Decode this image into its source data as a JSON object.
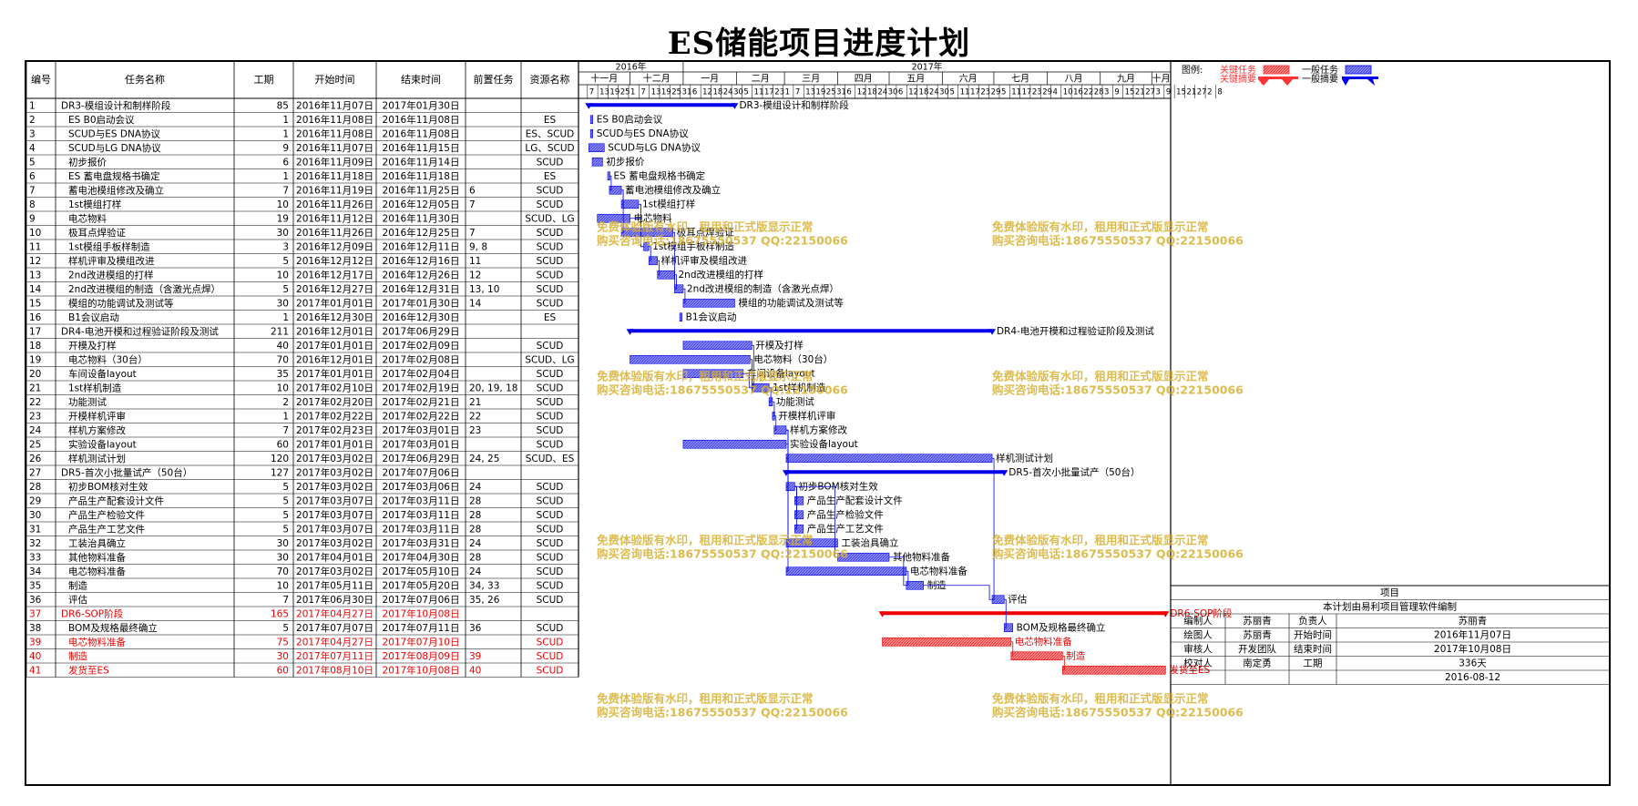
{
  "title": "ES储能项目进度计划",
  "table_headers": [
    "编号",
    "任务名称",
    "工期",
    "开始时间",
    "结束时间",
    "前置任务",
    "资源名称"
  ],
  "timeline": {
    "years": [
      {
        "label": "2016年",
        "start": "2016-11-01"
      },
      {
        "label": "2017年",
        "start": "2017-01-01"
      }
    ],
    "months": [
      "十一月",
      "十二月",
      "一月",
      "二月",
      "三月",
      "四月",
      "五月",
      "六月",
      "七月",
      "八月",
      "九月",
      "十月"
    ],
    "day_ticks": [
      "7",
      "13",
      "19",
      "25",
      "1",
      "7",
      "13",
      "19",
      "25",
      "31",
      "6",
      "12",
      "18",
      "24",
      "30",
      "5",
      "11",
      "17",
      "23",
      "1",
      "7",
      "13",
      "19",
      "25",
      "31",
      "6",
      "12",
      "18",
      "24",
      "30",
      "6",
      "12",
      "18",
      "24",
      "30",
      "5",
      "11",
      "17",
      "23",
      "29",
      "5",
      "11",
      "17",
      "23",
      "29",
      "4",
      "10",
      "16",
      "22",
      "28",
      "3",
      "9",
      "15",
      "21",
      "27",
      "3",
      "9",
      "15",
      "21",
      "27",
      "2",
      "8"
    ]
  },
  "legend": {
    "label": "图例:",
    "critical_task": "关键任务",
    "critical_summary": "关键摘要",
    "normal_task": "一般任务",
    "normal_summary": "一般摘要",
    "critical_color": "#ff3333",
    "normal_color": "#0000ee"
  },
  "watermark": {
    "line1": "免费体验版有水印，租用和正式版显示正常",
    "line2": "购买咨询电话:18675550537 QQ:22150066"
  },
  "info_box": {
    "header": "项目",
    "note": "本计划由易利项目管理软件编制",
    "rows": [
      [
        "编制人",
        "苏丽青",
        "负责人",
        "苏丽青"
      ],
      [
        "绘图人",
        "苏丽青",
        "开始时间",
        "2016年11月07日"
      ],
      [
        "审核人",
        "开发团队",
        "结束时间",
        "2017年10月08日"
      ],
      [
        "校对人",
        "南定勇",
        "工期",
        "336天"
      ]
    ],
    "date": "2016-08-12"
  },
  "chart_data": {
    "type": "gantt",
    "title": "ES储能项目进度计划",
    "x_range": [
      "2016-11-01",
      "2017-10-12"
    ],
    "tasks": [
      {
        "id": "1",
        "name": "DR3-模组设计和制样阶段",
        "duration": "85",
        "start": "2016年11月07日",
        "end": "2017年01月30日",
        "pred": "",
        "res": "",
        "kind": "summary",
        "critical": false,
        "start_date": "2016-11-07",
        "end_date": "2017-01-30"
      },
      {
        "id": "2",
        "name": "ES B0启动会议",
        "duration": "1",
        "start": "2016年11月08日",
        "end": "2016年11月08日",
        "pred": "",
        "res": "ES",
        "kind": "task",
        "critical": false,
        "start_date": "2016-11-08",
        "end_date": "2016-11-08"
      },
      {
        "id": "3",
        "name": "SCUD与ES DNA协议",
        "duration": "1",
        "start": "2016年11月08日",
        "end": "2016年11月08日",
        "pred": "",
        "res": "ES、SCUD",
        "kind": "task",
        "critical": false,
        "start_date": "2016-11-08",
        "end_date": "2016-11-08"
      },
      {
        "id": "4",
        "name": "SCUD与LG DNA协议",
        "duration": "9",
        "start": "2016年11月07日",
        "end": "2016年11月15日",
        "pred": "",
        "res": "LG、SCUD",
        "kind": "task",
        "critical": false,
        "start_date": "2016-11-07",
        "end_date": "2016-11-15"
      },
      {
        "id": "5",
        "name": "初步报价",
        "duration": "6",
        "start": "2016年11月09日",
        "end": "2016年11月14日",
        "pred": "",
        "res": "SCUD",
        "kind": "task",
        "critical": false,
        "start_date": "2016-11-09",
        "end_date": "2016-11-14"
      },
      {
        "id": "6",
        "name": "ES 蓄电盘规格书确定",
        "duration": "1",
        "start": "2016年11月18日",
        "end": "2016年11月18日",
        "pred": "",
        "res": "ES",
        "kind": "task",
        "critical": false,
        "start_date": "2016-11-18",
        "end_date": "2016-11-18"
      },
      {
        "id": "7",
        "name": "蓄电池模组修改及确立",
        "duration": "7",
        "start": "2016年11月19日",
        "end": "2016年11月25日",
        "pred": "6",
        "res": "SCUD",
        "kind": "task",
        "critical": false,
        "start_date": "2016-11-19",
        "end_date": "2016-11-25"
      },
      {
        "id": "8",
        "name": "1st模组打样",
        "duration": "10",
        "start": "2016年11月26日",
        "end": "2016年12月05日",
        "pred": "7",
        "res": "SCUD",
        "kind": "task",
        "critical": false,
        "start_date": "2016-11-26",
        "end_date": "2016-12-05"
      },
      {
        "id": "9",
        "name": "电芯物料",
        "duration": "19",
        "start": "2016年11月12日",
        "end": "2016年11月30日",
        "pred": "",
        "res": "SCUD、LG",
        "kind": "task",
        "critical": false,
        "start_date": "2016-11-12",
        "end_date": "2016-11-30"
      },
      {
        "id": "10",
        "name": "极耳点焊验证",
        "duration": "30",
        "start": "2016年11月26日",
        "end": "2016年12月25日",
        "pred": "7",
        "res": "SCUD",
        "kind": "task",
        "critical": false,
        "start_date": "2016-11-26",
        "end_date": "2016-12-25"
      },
      {
        "id": "11",
        "name": "1st模组手板样制造",
        "duration": "3",
        "start": "2016年12月09日",
        "end": "2016年12月11日",
        "pred": "9, 8",
        "res": "SCUD",
        "kind": "task",
        "critical": false,
        "start_date": "2016-12-09",
        "end_date": "2016-12-11"
      },
      {
        "id": "12",
        "name": "样机评审及模组改进",
        "duration": "5",
        "start": "2016年12月12日",
        "end": "2016年12月16日",
        "pred": "11",
        "res": "SCUD",
        "kind": "task",
        "critical": false,
        "start_date": "2016-12-12",
        "end_date": "2016-12-16"
      },
      {
        "id": "13",
        "name": "2nd改进模组的打样",
        "duration": "10",
        "start": "2016年12月17日",
        "end": "2016年12月26日",
        "pred": "12",
        "res": "SCUD",
        "kind": "task",
        "critical": false,
        "start_date": "2016-12-17",
        "end_date": "2016-12-26"
      },
      {
        "id": "14",
        "name": "2nd改进模组的制造（含激光点焊）",
        "duration": "5",
        "start": "2016年12月27日",
        "end": "2016年12月31日",
        "pred": "13, 10",
        "res": "SCUD",
        "kind": "task",
        "critical": false,
        "start_date": "2016-12-27",
        "end_date": "2016-12-31"
      },
      {
        "id": "15",
        "name": "模组的功能调试及测试等",
        "duration": "30",
        "start": "2017年01月01日",
        "end": "2017年01月30日",
        "pred": "14",
        "res": "SCUD",
        "kind": "task",
        "critical": false,
        "start_date": "2017-01-01",
        "end_date": "2017-01-30"
      },
      {
        "id": "16",
        "name": "B1会议启动",
        "duration": "1",
        "start": "2016年12月30日",
        "end": "2016年12月30日",
        "pred": "",
        "res": "ES",
        "kind": "task",
        "critical": false,
        "start_date": "2016-12-30",
        "end_date": "2016-12-30"
      },
      {
        "id": "17",
        "name": "DR4-电池开模和过程验证阶段及测试",
        "duration": "211",
        "start": "2016年12月01日",
        "end": "2017年06月29日",
        "pred": "",
        "res": "",
        "kind": "summary",
        "critical": false,
        "start_date": "2016-12-01",
        "end_date": "2017-06-29"
      },
      {
        "id": "18",
        "name": "开模及打样",
        "duration": "40",
        "start": "2017年01月01日",
        "end": "2017年02月09日",
        "pred": "",
        "res": "SCUD",
        "kind": "task",
        "critical": false,
        "start_date": "2017-01-01",
        "end_date": "2017-02-09"
      },
      {
        "id": "19",
        "name": "电芯物料（30台）",
        "duration": "70",
        "start": "2016年12月01日",
        "end": "2017年02月08日",
        "pred": "",
        "res": "SCUD、LG",
        "kind": "task",
        "critical": false,
        "start_date": "2016-12-01",
        "end_date": "2017-02-08"
      },
      {
        "id": "20",
        "name": "车间设备layout",
        "duration": "35",
        "start": "2017年01月01日",
        "end": "2017年02月04日",
        "pred": "",
        "res": "SCUD",
        "kind": "task",
        "critical": false,
        "start_date": "2017-01-01",
        "end_date": "2017-02-04"
      },
      {
        "id": "21",
        "name": "1st样机制造",
        "duration": "10",
        "start": "2017年02月10日",
        "end": "2017年02月19日",
        "pred": "20, 19, 18",
        "res": "SCUD",
        "kind": "task",
        "critical": false,
        "start_date": "2017-02-10",
        "end_date": "2017-02-19"
      },
      {
        "id": "22",
        "name": "功能测试",
        "duration": "2",
        "start": "2017年02月20日",
        "end": "2017年02月21日",
        "pred": "21",
        "res": "SCUD",
        "kind": "task",
        "critical": false,
        "start_date": "2017-02-20",
        "end_date": "2017-02-21"
      },
      {
        "id": "23",
        "name": "开模样机评审",
        "duration": "1",
        "start": "2017年02月22日",
        "end": "2017年02月22日",
        "pred": "22",
        "res": "SCUD",
        "kind": "task",
        "critical": false,
        "start_date": "2017-02-22",
        "end_date": "2017-02-22"
      },
      {
        "id": "24",
        "name": "样机方案修改",
        "duration": "7",
        "start": "2017年02月23日",
        "end": "2017年03月01日",
        "pred": "23",
        "res": "SCUD",
        "kind": "task",
        "critical": false,
        "start_date": "2017-02-23",
        "end_date": "2017-03-01"
      },
      {
        "id": "25",
        "name": "实验设备layout",
        "duration": "60",
        "start": "2017年01月01日",
        "end": "2017年03月01日",
        "pred": "",
        "res": "SCUD",
        "kind": "task",
        "critical": false,
        "start_date": "2017-01-01",
        "end_date": "2017-03-01"
      },
      {
        "id": "26",
        "name": "样机测试计划",
        "duration": "120",
        "start": "2017年03月02日",
        "end": "2017年06月29日",
        "pred": "24, 25",
        "res": "SCUD、ES",
        "kind": "task",
        "critical": false,
        "start_date": "2017-03-02",
        "end_date": "2017-06-29"
      },
      {
        "id": "27",
        "name": "DR5-首次小批量试产（50台）",
        "duration": "127",
        "start": "2017年03月02日",
        "end": "2017年07月06日",
        "pred": "",
        "res": "",
        "kind": "summary",
        "critical": false,
        "start_date": "2017-03-02",
        "end_date": "2017-07-06"
      },
      {
        "id": "28",
        "name": "初步BOM核对生效",
        "duration": "5",
        "start": "2017年03月02日",
        "end": "2017年03月06日",
        "pred": "24",
        "res": "SCUD",
        "kind": "task",
        "critical": false,
        "start_date": "2017-03-02",
        "end_date": "2017-03-06"
      },
      {
        "id": "29",
        "name": "产品生产配套设计文件",
        "duration": "5",
        "start": "2017年03月07日",
        "end": "2017年03月11日",
        "pred": "28",
        "res": "SCUD",
        "kind": "task",
        "critical": false,
        "start_date": "2017-03-07",
        "end_date": "2017-03-11"
      },
      {
        "id": "30",
        "name": "产品生产检验文件",
        "duration": "5",
        "start": "2017年03月07日",
        "end": "2017年03月11日",
        "pred": "28",
        "res": "SCUD",
        "kind": "task",
        "critical": false,
        "start_date": "2017-03-07",
        "end_date": "2017-03-11"
      },
      {
        "id": "31",
        "name": "产品生产工艺文件",
        "duration": "5",
        "start": "2017年03月07日",
        "end": "2017年03月11日",
        "pred": "28",
        "res": "SCUD",
        "kind": "task",
        "critical": false,
        "start_date": "2017-03-07",
        "end_date": "2017-03-11"
      },
      {
        "id": "32",
        "name": "工装治具确立",
        "duration": "30",
        "start": "2017年03月02日",
        "end": "2017年03月31日",
        "pred": "24",
        "res": "SCUD",
        "kind": "task",
        "critical": false,
        "start_date": "2017-03-02",
        "end_date": "2017-03-31"
      },
      {
        "id": "33",
        "name": "其他物料准备",
        "duration": "30",
        "start": "2017年04月01日",
        "end": "2017年04月30日",
        "pred": "28",
        "res": "SCUD",
        "kind": "task",
        "critical": false,
        "start_date": "2017-04-01",
        "end_date": "2017-04-30"
      },
      {
        "id": "34",
        "name": "电芯物料准备",
        "duration": "70",
        "start": "2017年03月02日",
        "end": "2017年05月10日",
        "pred": "24",
        "res": "SCUD",
        "kind": "task",
        "critical": false,
        "start_date": "2017-03-02",
        "end_date": "2017-05-10"
      },
      {
        "id": "35",
        "name": "制造",
        "duration": "10",
        "start": "2017年05月11日",
        "end": "2017年05月20日",
        "pred": "34, 33",
        "res": "SCUD",
        "kind": "task",
        "critical": false,
        "start_date": "2017-05-11",
        "end_date": "2017-05-20"
      },
      {
        "id": "36",
        "name": "评估",
        "duration": "7",
        "start": "2017年06月30日",
        "end": "2017年07月06日",
        "pred": "35, 26",
        "res": "SCUD",
        "kind": "task",
        "critical": false,
        "start_date": "2017-06-30",
        "end_date": "2017-07-06"
      },
      {
        "id": "37",
        "name": "DR6-SOP阶段",
        "duration": "165",
        "start": "2017年04月27日",
        "end": "2017年10月08日",
        "pred": "",
        "res": "",
        "kind": "summary",
        "critical": true,
        "start_date": "2017-04-27",
        "end_date": "2017-10-08"
      },
      {
        "id": "38",
        "name": "BOM及规格最终确立",
        "duration": "5",
        "start": "2017年07月07日",
        "end": "2017年07月11日",
        "pred": "36",
        "res": "SCUD",
        "kind": "task",
        "critical": false,
        "start_date": "2017-07-07",
        "end_date": "2017-07-11"
      },
      {
        "id": "39",
        "name": "电芯物料准备",
        "duration": "75",
        "start": "2017年04月27日",
        "end": "2017年07月10日",
        "pred": "",
        "res": "SCUD",
        "kind": "task",
        "critical": true,
        "start_date": "2017-04-27",
        "end_date": "2017-07-10"
      },
      {
        "id": "40",
        "name": "制造",
        "duration": "30",
        "start": "2017年07月11日",
        "end": "2017年08月09日",
        "pred": "39",
        "res": "SCUD",
        "kind": "task",
        "critical": true,
        "start_date": "2017-07-11",
        "end_date": "2017-08-09"
      },
      {
        "id": "41",
        "name": "发货至ES",
        "duration": "60",
        "start": "2017年08月10日",
        "end": "2017年10月08日",
        "pred": "40",
        "res": "SCUD",
        "kind": "task",
        "critical": true,
        "start_date": "2017-08-10",
        "end_date": "2017-10-08"
      }
    ]
  }
}
